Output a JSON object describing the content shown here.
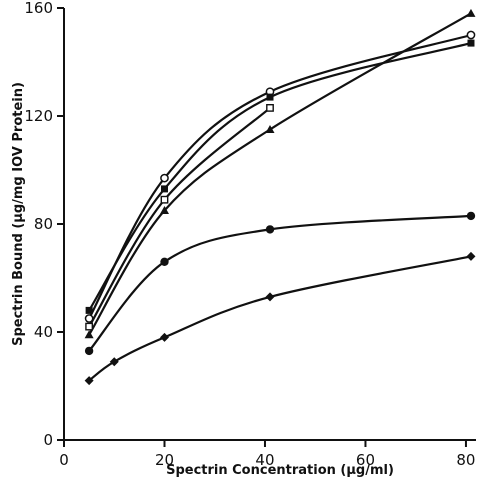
{
  "chart_data": {
    "type": "line",
    "xlabel": "Spectrin Concentration (μg/ml)",
    "ylabel": "Spectrin Bound (μg/mg IOV Protein)",
    "xlim": [
      0,
      82
    ],
    "ylim": [
      0,
      160
    ],
    "x_ticks": [
      "0",
      "20",
      "40",
      "60",
      "80"
    ],
    "y_ticks": [
      "0",
      "40",
      "80",
      "120",
      "160"
    ],
    "x_tick_values": [
      0,
      20,
      40,
      60,
      80
    ],
    "y_tick_values": [
      0,
      40,
      80,
      120,
      160
    ],
    "grid": false,
    "series": [
      {
        "marker": "triangle-filled",
        "x": [
          5,
          20,
          41,
          81
        ],
        "y": [
          39,
          85,
          115,
          158
        ]
      },
      {
        "marker": "circle-open",
        "x": [
          5,
          20,
          41,
          81
        ],
        "y": [
          45,
          97,
          129,
          150
        ]
      },
      {
        "marker": "square-filled",
        "x": [
          5,
          20,
          41,
          81
        ],
        "y": [
          48,
          93,
          127,
          147
        ]
      },
      {
        "marker": "square-open",
        "x": [
          5,
          20,
          41
        ],
        "y": [
          42,
          89,
          123
        ]
      },
      {
        "marker": "circle-filled",
        "x": [
          5,
          20,
          41,
          81
        ],
        "y": [
          33,
          66,
          78,
          83
        ]
      },
      {
        "marker": "diamond-filled",
        "x": [
          5,
          10,
          20,
          41,
          81
        ],
        "y": [
          22,
          29,
          38,
          53,
          68
        ]
      }
    ]
  }
}
